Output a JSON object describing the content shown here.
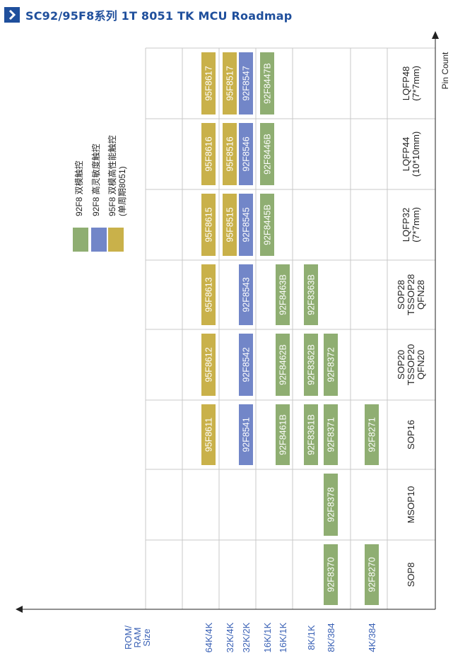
{
  "header": {
    "title": "SC92/95F8系列 1T 8051 TK MCU Roadmap"
  },
  "colors": {
    "green": "#8fae72",
    "blue": "#7286c8",
    "yellow": "#c9b14a",
    "grid": "#c8c8c8",
    "axis_label": "#3a61b5",
    "title": "#1f4f9c"
  },
  "axis": {
    "pin_title": "Pin Count",
    "mem_title": [
      "ROM/",
      "RAM",
      "Size"
    ]
  },
  "legend": [
    {
      "color": "green",
      "label": "92F8 双模触控"
    },
    {
      "color": "blue",
      "label": "92F8 高灵敏度触控"
    },
    {
      "color": "yellow",
      "label": "95F8 双模高性能触控",
      "sub": "(单周期8051)"
    }
  ],
  "packages": [
    [
      "SOP8"
    ],
    [
      "MSOP10"
    ],
    [
      "SOP16"
    ],
    [
      "SOP20",
      "TSSOP20",
      "QFN20"
    ],
    [
      "SOP28",
      "TSSOP28",
      "QFN28"
    ],
    [
      "LQFP32",
      "(7*7mm)"
    ],
    [
      "LQFP44",
      "(10*10mm)"
    ],
    [
      "LQFP48",
      "(7*7mm)"
    ]
  ],
  "mem_sizes": [
    "64K/4K",
    "32K/4K",
    "32K/2K",
    "16K/1K",
    "16K/1K",
    "8K/1K",
    "8K/384",
    "4K/384"
  ],
  "parts": [
    {
      "name": "95F8617",
      "col": 0,
      "pkg": 7,
      "color": "yellow"
    },
    {
      "name": "95F8616",
      "col": 0,
      "pkg": 6,
      "color": "yellow"
    },
    {
      "name": "95F8615",
      "col": 0,
      "pkg": 5,
      "color": "yellow"
    },
    {
      "name": "95F8613",
      "col": 0,
      "pkg": 4,
      "color": "yellow"
    },
    {
      "name": "95F8612",
      "col": 0,
      "pkg": 3,
      "color": "yellow"
    },
    {
      "name": "95F8611",
      "col": 0,
      "pkg": 2,
      "color": "yellow"
    },
    {
      "name": "95F8517",
      "col": 1,
      "pkg": 7,
      "color": "yellow"
    },
    {
      "name": "95F8516",
      "col": 1,
      "pkg": 6,
      "color": "yellow"
    },
    {
      "name": "95F8515",
      "col": 1,
      "pkg": 5,
      "color": "yellow"
    },
    {
      "name": "92F8547",
      "col": 2,
      "pkg": 7,
      "color": "blue"
    },
    {
      "name": "92F8546",
      "col": 2,
      "pkg": 6,
      "color": "blue"
    },
    {
      "name": "92F8545",
      "col": 2,
      "pkg": 5,
      "color": "blue"
    },
    {
      "name": "92F8543",
      "col": 2,
      "pkg": 4,
      "color": "blue"
    },
    {
      "name": "92F8542",
      "col": 2,
      "pkg": 3,
      "color": "blue"
    },
    {
      "name": "92F8541",
      "col": 2,
      "pkg": 2,
      "color": "blue"
    },
    {
      "name": "92F8447B",
      "col": 3,
      "pkg": 7,
      "color": "green"
    },
    {
      "name": "92F8446B",
      "col": 3,
      "pkg": 6,
      "color": "green"
    },
    {
      "name": "92F8445B",
      "col": 3,
      "pkg": 5,
      "color": "green"
    },
    {
      "name": "92F8463B",
      "col": 4,
      "pkg": 4,
      "color": "green"
    },
    {
      "name": "92F8462B",
      "col": 4,
      "pkg": 3,
      "color": "green"
    },
    {
      "name": "92F8461B",
      "col": 4,
      "pkg": 2,
      "color": "green"
    },
    {
      "name": "92F8363B",
      "col": 5,
      "pkg": 4,
      "color": "green"
    },
    {
      "name": "92F8362B",
      "col": 5,
      "pkg": 3,
      "color": "green"
    },
    {
      "name": "92F8361B",
      "col": 5,
      "pkg": 2,
      "color": "green"
    },
    {
      "name": "92F8372",
      "col": 6,
      "pkg": 3,
      "color": "green"
    },
    {
      "name": "92F8371",
      "col": 6,
      "pkg": 2,
      "color": "green"
    },
    {
      "name": "92F8378",
      "col": 6,
      "pkg": 1,
      "color": "green"
    },
    {
      "name": "92F8370",
      "col": 6,
      "pkg": 0,
      "color": "green"
    },
    {
      "name": "92F8271",
      "col": 7,
      "pkg": 2,
      "color": "green"
    },
    {
      "name": "92F8270",
      "col": 7,
      "pkg": 0,
      "color": "green"
    }
  ]
}
